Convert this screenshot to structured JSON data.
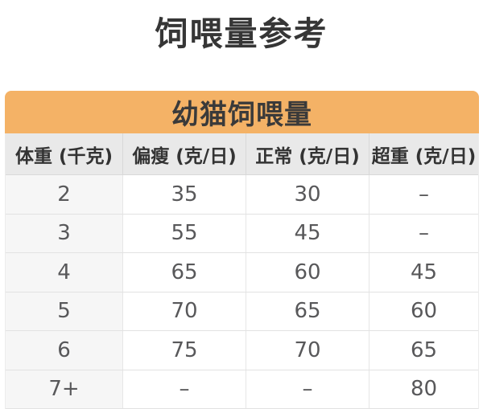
{
  "page": {
    "title": "饲喂量参考"
  },
  "colors": {
    "accent_orange": "#F4B266",
    "column_header_bg": "#E9E9E9",
    "row_label_bg": "#F6F6F6",
    "border": "#E2E2E2",
    "heading_text": "#333333",
    "data_text": "#58585A"
  },
  "chart_data": {
    "type": "table",
    "title": "幼猫饲喂量",
    "page_heading": "饲喂量参考",
    "columns": [
      "体重 (千克)",
      "偏瘦 (克/日)",
      "正常 (克/日)",
      "超重 (克/日)"
    ],
    "rows": [
      [
        "2",
        "35",
        "30",
        "–"
      ],
      [
        "3",
        "55",
        "45",
        "–"
      ],
      [
        "4",
        "65",
        "60",
        "45"
      ],
      [
        "5",
        "70",
        "65",
        "60"
      ],
      [
        "6",
        "75",
        "70",
        "65"
      ],
      [
        "7+",
        "–",
        "–",
        "80"
      ]
    ]
  }
}
